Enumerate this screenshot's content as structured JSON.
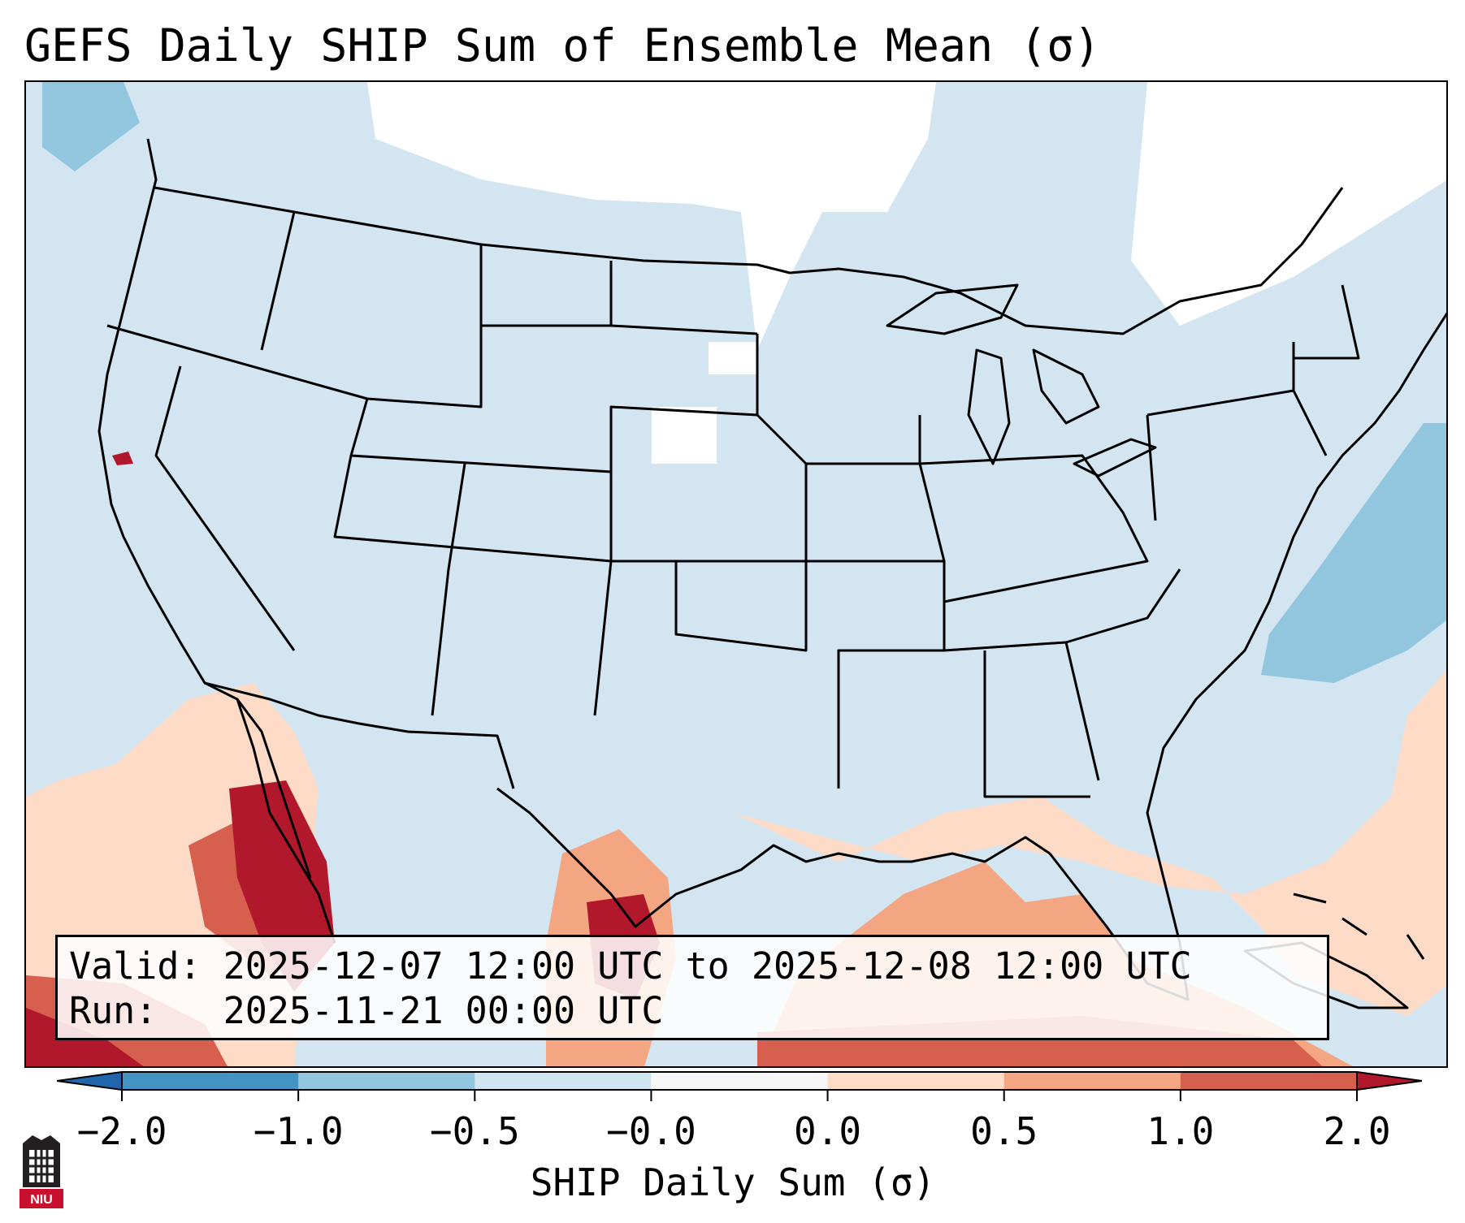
{
  "title": "GEFS Daily SHIP Sum of Ensemble Mean (σ)",
  "valid": {
    "valid_label": "Valid:",
    "valid_value": "2025-12-07 12:00 UTC to 2025-12-08 12:00 UTC",
    "run_label": "Run:",
    "run_value": "2025-11-21 00:00 UTC"
  },
  "colorbar": {
    "label": "SHIP Daily Sum (σ)",
    "ticks": [
      "−2.0",
      "−1.0",
      "−0.5",
      "−0.0",
      "0.0",
      "0.5",
      "1.0",
      "2.0"
    ],
    "colors": [
      "#4393c3",
      "#92c5de",
      "#d1e5f0",
      "#f7f7f7",
      "#fddbc7",
      "#f4a582",
      "#d6604d"
    ],
    "under_color": "#2166ac",
    "over_color": "#b2182b"
  },
  "logo": {
    "text": "NIU",
    "color": "#c8102e"
  },
  "map_colors": {
    "background": "#d2e5f0",
    "white": "#ffffff",
    "blue_med": "#92c5de",
    "peach": "#fddbc7",
    "salmon": "#f4a582",
    "red": "#d6604d",
    "dark_red": "#b2182b"
  }
}
